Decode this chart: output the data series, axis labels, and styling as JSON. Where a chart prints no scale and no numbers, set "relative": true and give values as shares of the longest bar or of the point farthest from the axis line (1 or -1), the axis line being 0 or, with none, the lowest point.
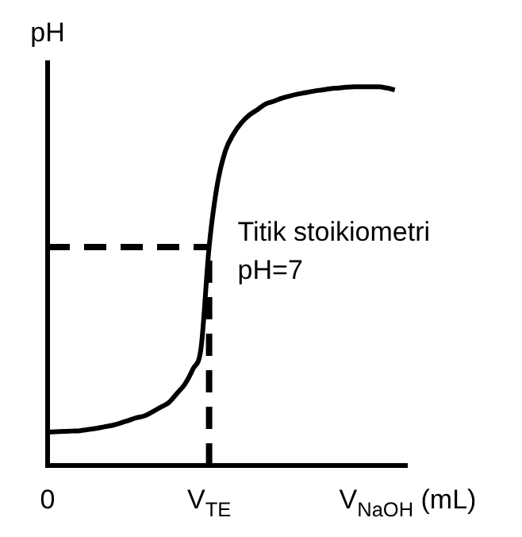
{
  "chart_data": {
    "type": "line",
    "relative": true,
    "ylabel": "pH",
    "xlabel": "V$_{NaOH}$ (mL)",
    "categories": [
      "0",
      null,
      null,
      null,
      null,
      null,
      null,
      null,
      null,
      null,
      null,
      null,
      null,
      null,
      null,
      null,
      null,
      null,
      null,
      null,
      "V$_{TE}$",
      null,
      null,
      null,
      null,
      null,
      null,
      null,
      null,
      null,
      null,
      null,
      null,
      null,
      null,
      null,
      null,
      null,
      null,
      null,
      null,
      null,
      null,
      null
    ],
    "series": [
      {
        "color": "#000000",
        "values": [
          0.088,
          0.089,
          0.09,
          0.091,
          0.092,
          0.095,
          0.098,
          0.102,
          0.106,
          0.112,
          0.119,
          0.126,
          0.131,
          0.142,
          0.154,
          0.166,
          0.19,
          0.215,
          0.255,
          0.31,
          0.577,
          0.74,
          0.83,
          0.875,
          0.905,
          0.926,
          0.94,
          0.955,
          0.962,
          0.97,
          0.976,
          0.981,
          0.985,
          0.989,
          0.992,
          0.995,
          0.997,
          0.999,
          1,
          1,
          1,
          1,
          0.997,
          0.992
        ]
      }
    ],
    "ref_lines": [
      {
        "axis": "y",
        "value": 0.577,
        "color": "#000000",
        "line_style": "dashed"
      },
      {
        "axis": "x",
        "value": "V$_{TE}$",
        "color": "#000000",
        "line_style": "dashed"
      }
    ],
    "annotations": [
      {
        "text": "Titik stoikiometri\npH=7",
        "x": "V$_{TE}$",
        "y": 0.577
      }
    ],
    "grid": false,
    "legend": false,
    "marker": "none",
    "line_style": "solid"
  }
}
